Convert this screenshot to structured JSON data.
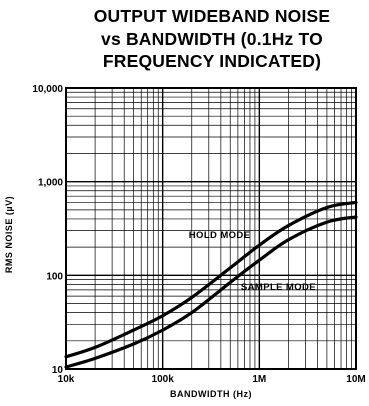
{
  "title_lines": [
    "OUTPUT WIDEBAND NOISE",
    "vs BANDWIDTH (0.1Hz TO",
    "FREQUENCY INDICATED)"
  ],
  "chart_data": {
    "type": "line",
    "title": "OUTPUT WIDEBAND NOISE vs BANDWIDTH (0.1Hz TO FREQUENCY INDICATED)",
    "xlabel": "BANDWIDTH (Hz)",
    "ylabel": "RMS NOISE (µV)",
    "x_scale": "log",
    "y_scale": "log",
    "xlim": [
      10000,
      10000000
    ],
    "ylim": [
      10,
      10000
    ],
    "grid": true,
    "x_ticks": [
      {
        "value": 10000,
        "label": "10k"
      },
      {
        "value": 100000,
        "label": "100k"
      },
      {
        "value": 1000000,
        "label": "1M"
      },
      {
        "value": 10000000,
        "label": "10M"
      }
    ],
    "y_ticks": [
      {
        "value": 10,
        "label": "10"
      },
      {
        "value": 100,
        "label": "100"
      },
      {
        "value": 1000,
        "label": "1,000"
      },
      {
        "value": 10000,
        "label": "10,000"
      }
    ],
    "series": [
      {
        "name": "HOLD MODE",
        "x": [
          10000,
          20000,
          50000,
          100000,
          200000,
          500000,
          1000000,
          2000000,
          5000000,
          10000000
        ],
        "values": [
          13.5,
          17,
          26,
          37,
          58,
          120,
          210,
          340,
          530,
          600
        ]
      },
      {
        "name": "SAMPLE MODE",
        "x": [
          10000,
          20000,
          50000,
          100000,
          200000,
          500000,
          1000000,
          2000000,
          5000000,
          10000000
        ],
        "values": [
          10.5,
          13,
          18.5,
          26,
          40,
          84,
          145,
          240,
          370,
          420
        ]
      }
    ]
  }
}
